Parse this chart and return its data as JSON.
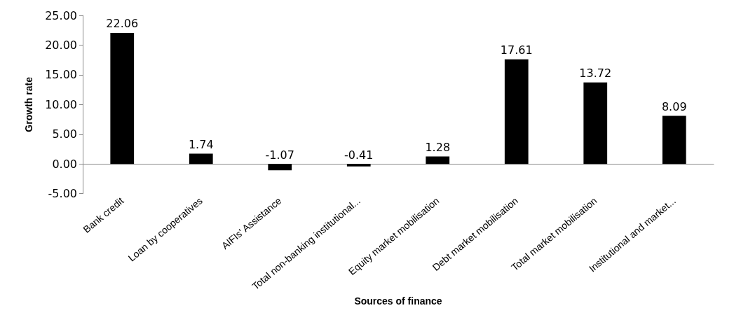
{
  "chart_data": {
    "type": "bar",
    "xlabel": "Sources of finance",
    "ylabel": "Growth rate",
    "categories": [
      "Bank credit",
      "Loan by cooperatives",
      "AIFIs' Assistance",
      "Total non-banking institutional...",
      "Equity market mobilisation",
      "Debt market mobilisation",
      "Total market mobilisation",
      "Institutional and market..."
    ],
    "values": [
      22.06,
      1.74,
      -1.07,
      -0.41,
      1.28,
      17.61,
      13.72,
      8.09
    ],
    "color": "#000000",
    "ylim": [
      -5,
      25
    ],
    "yticks": [
      {
        "value": -5,
        "label": "-5.00"
      },
      {
        "value": 0,
        "label": "0.00"
      },
      {
        "value": 5,
        "label": "5.00"
      },
      {
        "value": 10,
        "label": "10.00"
      },
      {
        "value": 15,
        "label": "15.00"
      },
      {
        "value": 20,
        "label": "20.00"
      },
      {
        "value": 25,
        "label": "25.00"
      }
    ],
    "data_labels": true
  }
}
